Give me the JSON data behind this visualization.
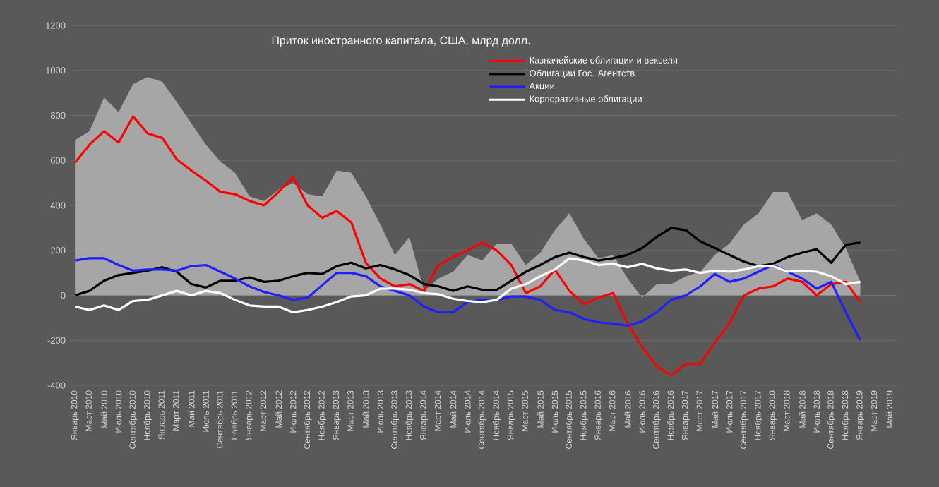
{
  "chart_data": {
    "type": "line",
    "title": "Приток иностранного капитала, США, млрд долл.",
    "categories": [
      "Январь 2010",
      "Март 2010",
      "Май 2010",
      "Июль 2010",
      "Сентябрь 2010",
      "Ноябрь 2010",
      "Январь 2011",
      "Март 2011",
      "Май 2011",
      "Июль 2011",
      "Сентябрь 2011",
      "Ноябрь 2011",
      "Январь 2012",
      "Март 2012",
      "Май 2012",
      "Июль 2012",
      "Сентябрь 2012",
      "Ноябрь 2012",
      "Январь 2013",
      "Март 2013",
      "Май 2013",
      "Июль 2013",
      "Сентябрь 2013",
      "Ноябрь 2013",
      "Январь 2014",
      "Март 2014",
      "Май 2014",
      "Июль 2014",
      "Сентябрь 2014",
      "Ноябрь 2014",
      "Январь 2015",
      "Март 2015",
      "Май 2015",
      "Июль 2015",
      "Сентябрь 2015",
      "Ноябрь 2015",
      "Январь 2016",
      "Март 2016",
      "Май 2016",
      "Июль 2016",
      "Сентябрь 2016",
      "Ноябрь 2016",
      "Январь 2017",
      "Март 2017",
      "Май 2017",
      "Июль 2017",
      "Сентябрь 2017",
      "Ноябрь 2017",
      "Январь 2018",
      "Март 2018",
      "Май 2018",
      "Июль 2018",
      "Сентябрь 2018",
      "Ноябрь 2018",
      "Январь 2019",
      "Март 2019",
      "Май 2019"
    ],
    "series": [
      {
        "type": "area",
        "color": "#a6a6a6",
        "values": [
          690,
          730,
          880,
          815,
          940,
          970,
          950,
          860,
          765,
          670,
          595,
          545,
          440,
          420,
          470,
          500,
          450,
          440,
          555,
          545,
          440,
          315,
          180,
          260,
          20,
          75,
          105,
          180,
          155,
          230,
          230,
          135,
          190,
          290,
          365,
          250,
          165,
          180,
          75,
          -10,
          50,
          50,
          85,
          105,
          180,
          230,
          315,
          365,
          460,
          460,
          335,
          365,
          315,
          210,
          60,
          null,
          null
        ]
      },
      {
        "name": "Казначейские облигации и векселя",
        "color": "#ff0000",
        "values": [
          590,
          670,
          730,
          680,
          795,
          720,
          700,
          605,
          555,
          510,
          460,
          450,
          420,
          400,
          460,
          525,
          400,
          345,
          375,
          325,
          145,
          75,
          40,
          50,
          20,
          135,
          170,
          200,
          235,
          200,
          135,
          10,
          40,
          115,
          20,
          -40,
          -10,
          10,
          -125,
          -230,
          -315,
          -355,
          -305,
          -305,
          -210,
          -125,
          0,
          30,
          40,
          75,
          60,
          0,
          50,
          60,
          -30,
          null,
          null
        ]
      },
      {
        "name": "Облигации Гос. Агентств",
        "color": "#000000",
        "values": [
          0,
          20,
          65,
          90,
          100,
          110,
          125,
          105,
          50,
          35,
          65,
          65,
          80,
          60,
          65,
          85,
          100,
          95,
          130,
          145,
          120,
          135,
          115,
          90,
          50,
          40,
          20,
          40,
          25,
          25,
          65,
          105,
          135,
          170,
          190,
          170,
          155,
          165,
          180,
          210,
          260,
          300,
          290,
          240,
          210,
          180,
          150,
          130,
          140,
          170,
          190,
          205,
          145,
          225,
          235,
          null,
          null
        ]
      },
      {
        "name": "Акции",
        "color": "#1f1fff",
        "values": [
          155,
          165,
          165,
          135,
          110,
          115,
          115,
          110,
          130,
          135,
          105,
          75,
          40,
          15,
          0,
          -20,
          -10,
          45,
          100,
          100,
          85,
          40,
          20,
          0,
          -50,
          -75,
          -75,
          -30,
          -20,
          -20,
          -5,
          -5,
          -20,
          -65,
          -75,
          -105,
          -120,
          -125,
          -135,
          -115,
          -75,
          -20,
          0,
          40,
          95,
          60,
          75,
          105,
          135,
          105,
          75,
          30,
          60,
          -75,
          -200,
          null,
          null
        ]
      },
      {
        "name": "Корпоративные облигации",
        "color": "#ffffff",
        "values": [
          -50,
          -65,
          -45,
          -65,
          -25,
          -20,
          0,
          20,
          0,
          20,
          10,
          -20,
          -45,
          -50,
          -50,
          -75,
          -65,
          -50,
          -30,
          -5,
          0,
          30,
          30,
          25,
          10,
          5,
          -15,
          -25,
          -30,
          -20,
          30,
          50,
          85,
          115,
          165,
          155,
          135,
          140,
          125,
          140,
          120,
          110,
          115,
          100,
          110,
          105,
          115,
          130,
          130,
          105,
          110,
          105,
          85,
          50,
          60,
          null,
          null
        ]
      }
    ],
    "ylim": [
      -400,
      1200
    ],
    "yticks": [
      -400,
      -200,
      0,
      200,
      400,
      600,
      800,
      1000,
      1200
    ],
    "grid": "y",
    "legend": "top right",
    "marker": "none",
    "line_style": "solid"
  }
}
